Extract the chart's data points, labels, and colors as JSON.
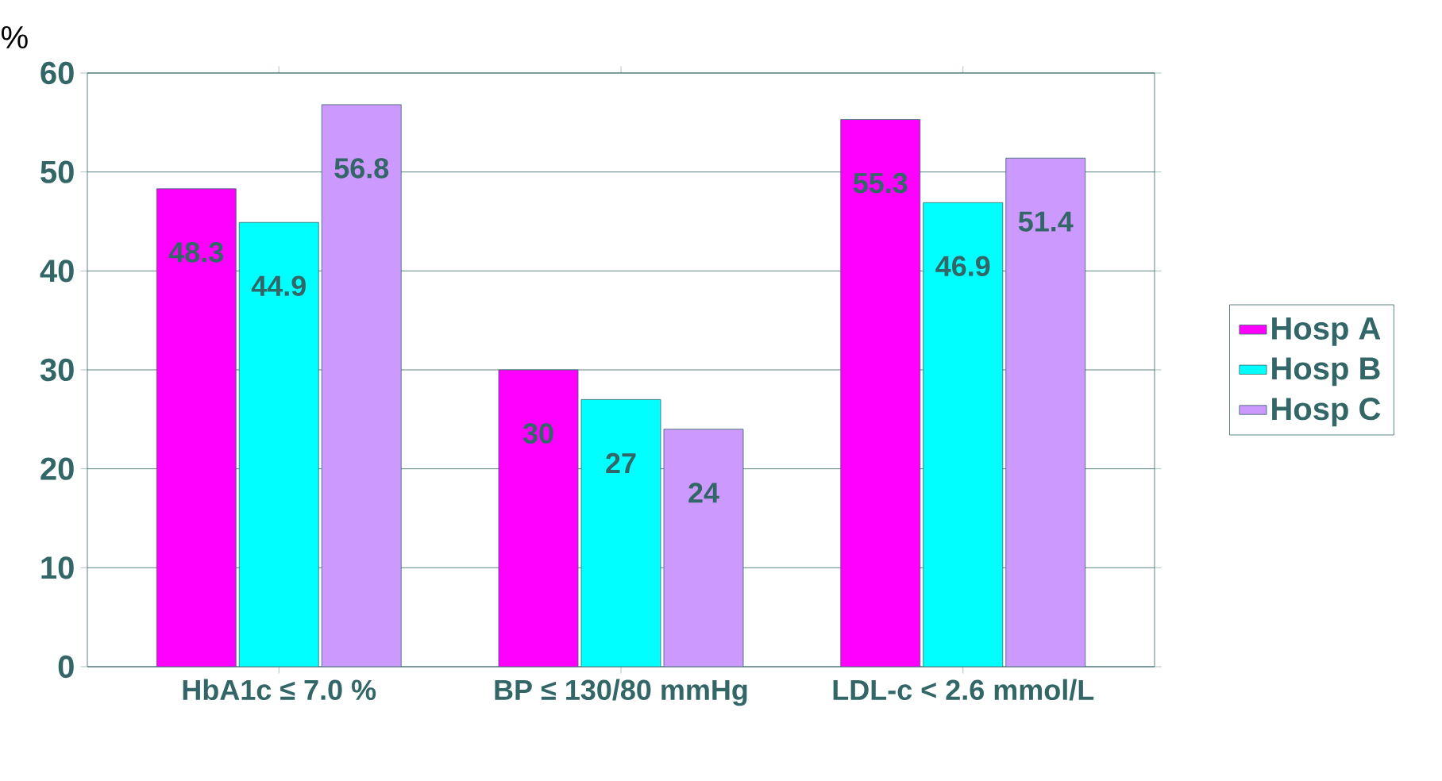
{
  "chart_data": {
    "type": "bar",
    "ylabel": "%",
    "categories": [
      "HbA1c ≤ 7.0 %",
      "BP ≤ 130/80 mmHg",
      "LDL-c < 2.6 mmol/L"
    ],
    "series": [
      {
        "name": "Hosp A",
        "color": "#ff00ff",
        "values": [
          48.3,
          30,
          55.3
        ]
      },
      {
        "name": "Hosp B",
        "color": "#00ffff",
        "values": [
          44.9,
          27,
          46.9
        ]
      },
      {
        "name": "Hosp C",
        "color": "#cc99ff",
        "values": [
          56.8,
          24,
          51.4
        ]
      }
    ],
    "ylim": [
      0,
      60
    ],
    "yticks": [
      0,
      10,
      20,
      30,
      40,
      50,
      60
    ],
    "grid": "y",
    "legend": "right",
    "data_labels": true
  }
}
